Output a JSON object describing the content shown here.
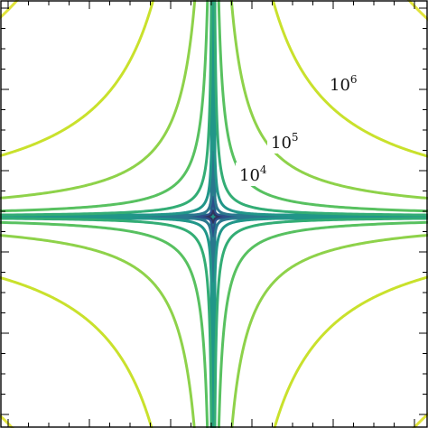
{
  "chart_data": {
    "type": "contour",
    "function": "|x*y|",
    "x_range": [
      -1,
      1
    ],
    "y_range": [
      -1,
      1
    ],
    "scale": "log",
    "levels": [
      {
        "value": 0.1,
        "color": "#31325f"
      },
      {
        "value": 1.0,
        "color": "#2c4f8a"
      },
      {
        "value": 10.0,
        "color": "#2a778e"
      },
      {
        "value": 100.0,
        "color": "#219689"
      },
      {
        "value": 1000.0,
        "color": "#33ad75"
      },
      {
        "value": 10000.0,
        "color": "#58c160"
      },
      {
        "value": 100000.0,
        "color": "#8ed24a"
      },
      {
        "value": 1000000.0,
        "color": "#c9e12c"
      },
      {
        "value": 10000000.0,
        "color": "#e0e33a"
      }
    ],
    "labels": [
      {
        "base": "10",
        "exp": "4",
        "level": 10000.0
      },
      {
        "base": "10",
        "exp": "5",
        "level": 100000.0
      },
      {
        "base": "10",
        "exp": "6",
        "level": 1000000.0
      }
    ],
    "colormap": "viridis",
    "colorbar": false,
    "axis_tick_labels": false,
    "grid": false
  }
}
